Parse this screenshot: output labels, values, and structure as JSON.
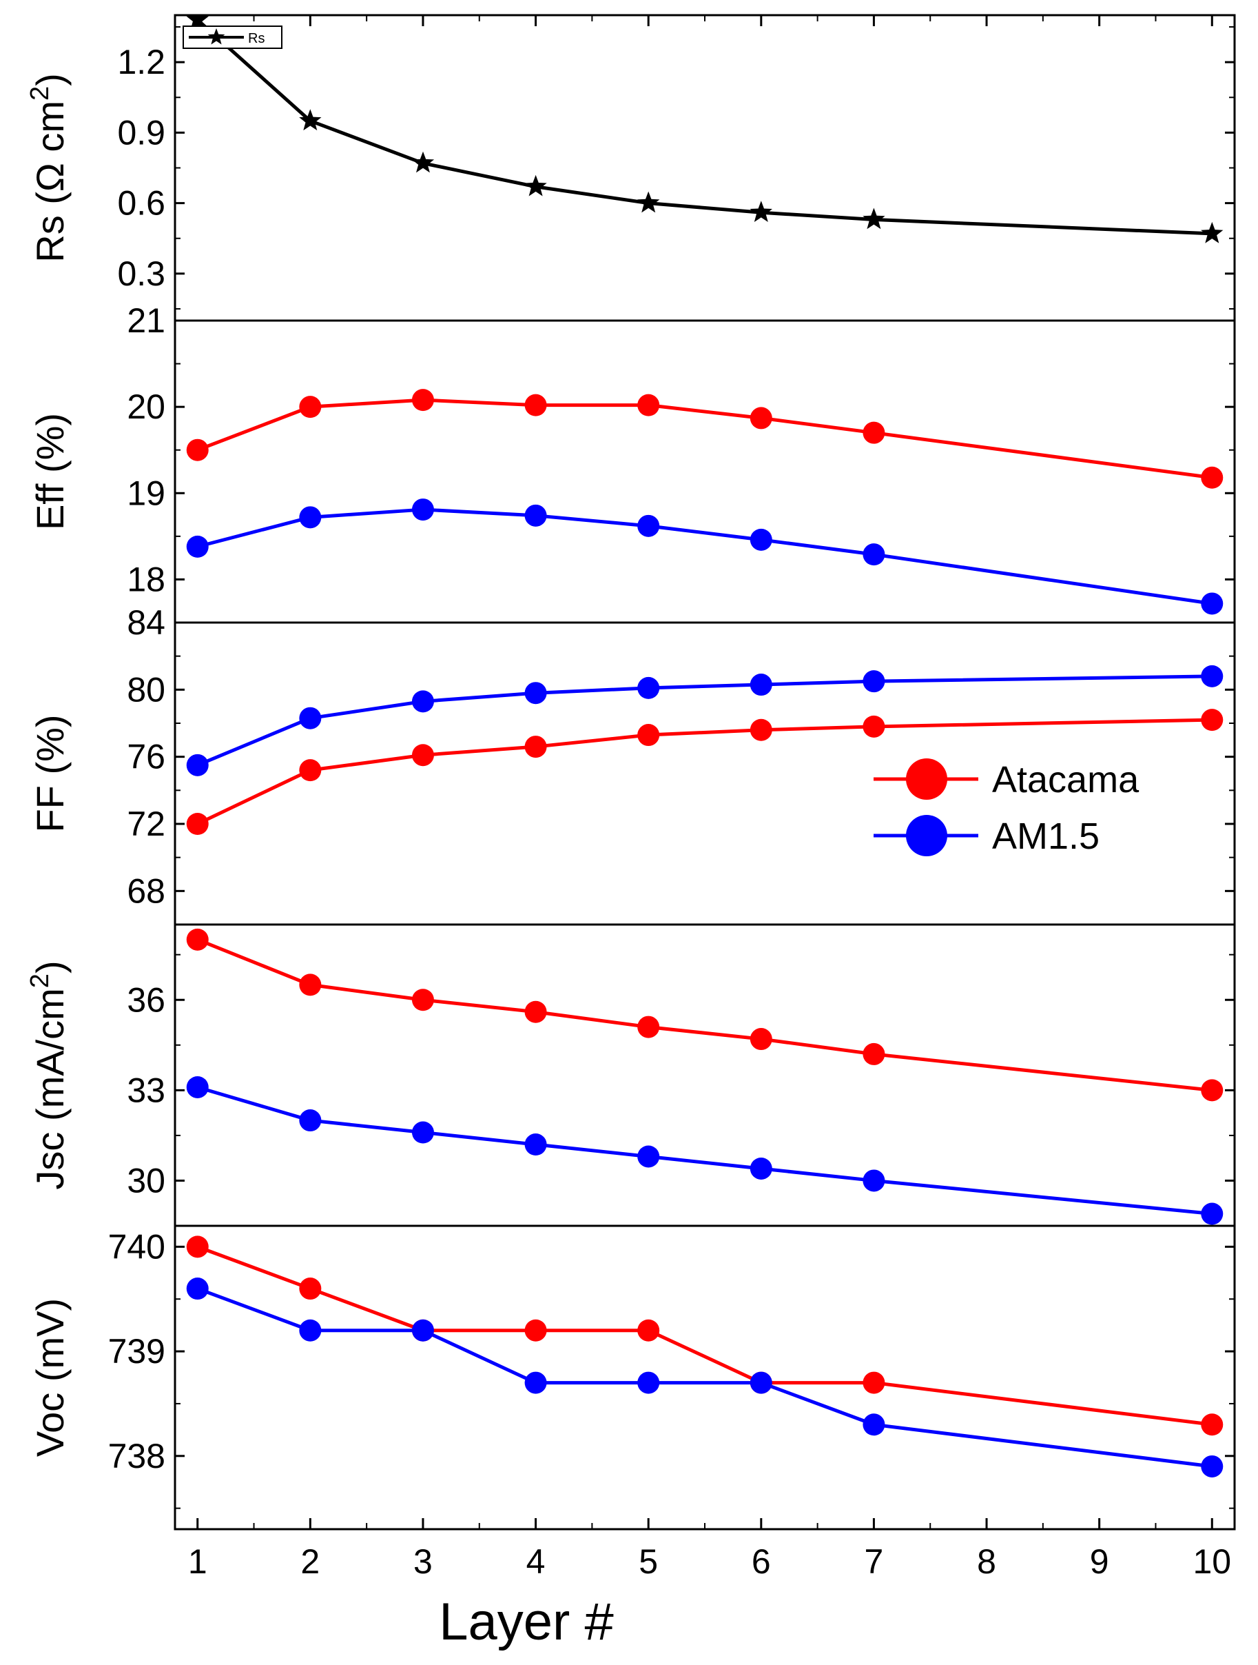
{
  "chart_data": {
    "type": "line",
    "xlabel": "Layer #",
    "x_ticks": [
      1,
      2,
      3,
      4,
      5,
      6,
      7,
      8,
      9,
      10
    ],
    "xlim": [
      0.8,
      10.2
    ],
    "colors": {
      "rs": "#000000",
      "atacama": "#ff0000",
      "am15": "#0000ff"
    },
    "legend": {
      "items": [
        "Atacama",
        "AM1.5"
      ],
      "placement": "right, inside FF panel"
    },
    "panels": [
      {
        "id": "rs",
        "ylabel_main": "Rs (Ω cm",
        "ylabel_sup": "2",
        "ylabel_end": ")",
        "ylim": [
          0.1,
          1.4
        ],
        "y_ticks": [
          0.3,
          0.6,
          0.9,
          1.2
        ],
        "y_tick_labels": [
          "0.3",
          "0.6",
          "0.9",
          "1.2"
        ],
        "small_legend": "Rs",
        "series": [
          {
            "name": "Rs",
            "color": "#000000",
            "marker": "star",
            "x": [
              1,
              2,
              3,
              4,
              5,
              6,
              7,
              10
            ],
            "y": [
              1.38,
              0.95,
              0.77,
              0.67,
              0.6,
              0.56,
              0.53,
              0.47
            ]
          }
        ]
      },
      {
        "id": "eff",
        "ylabel_main": "Eff (%)",
        "ylim": [
          17.5,
          21
        ],
        "y_ticks": [
          18,
          19,
          20,
          21
        ],
        "y_tick_labels": [
          "18",
          "19",
          "20",
          "21"
        ],
        "series": [
          {
            "name": "Atacama",
            "color": "#ff0000",
            "marker": "circle",
            "x": [
              1,
              2,
              3,
              4,
              5,
              6,
              7,
              10
            ],
            "y": [
              19.5,
              20.0,
              20.08,
              20.02,
              20.02,
              19.87,
              19.7,
              19.18
            ]
          },
          {
            "name": "AM1.5",
            "color": "#0000ff",
            "marker": "circle",
            "x": [
              1,
              2,
              3,
              4,
              5,
              6,
              7,
              10
            ],
            "y": [
              18.38,
              18.72,
              18.81,
              18.74,
              18.62,
              18.46,
              18.29,
              17.72
            ]
          }
        ]
      },
      {
        "id": "ff",
        "ylabel_main": "FF (%)",
        "ylim": [
          66,
          84
        ],
        "y_ticks": [
          68,
          72,
          76,
          80,
          84
        ],
        "y_tick_labels": [
          "68",
          "72",
          "76",
          "80",
          "84"
        ],
        "series": [
          {
            "name": "Atacama",
            "color": "#ff0000",
            "marker": "circle",
            "x": [
              1,
              2,
              3,
              4,
              5,
              6,
              7,
              10
            ],
            "y": [
              72.0,
              75.2,
              76.1,
              76.6,
              77.3,
              77.6,
              77.8,
              78.2
            ]
          },
          {
            "name": "AM1.5",
            "color": "#0000ff",
            "marker": "circle",
            "x": [
              1,
              2,
              3,
              4,
              5,
              6,
              7,
              10
            ],
            "y": [
              75.5,
              78.3,
              79.3,
              79.8,
              80.1,
              80.3,
              80.5,
              80.8
            ]
          }
        ]
      },
      {
        "id": "jsc",
        "ylabel_main": "Jsc (mA/cm",
        "ylabel_sup": "2",
        "ylabel_end": ")",
        "ylim": [
          28.5,
          38.5
        ],
        "y_ticks": [
          30,
          33,
          36
        ],
        "y_tick_labels": [
          "30",
          "33",
          "36"
        ],
        "series": [
          {
            "name": "Atacama",
            "color": "#ff0000",
            "marker": "circle",
            "x": [
              1,
              2,
              3,
              4,
              5,
              6,
              7,
              10
            ],
            "y": [
              38.0,
              36.5,
              36.0,
              35.6,
              35.1,
              34.7,
              34.2,
              33.0
            ]
          },
          {
            "name": "AM1.5",
            "color": "#0000ff",
            "marker": "circle",
            "x": [
              1,
              2,
              3,
              4,
              5,
              6,
              7,
              10
            ],
            "y": [
              33.1,
              32.0,
              31.6,
              31.2,
              30.8,
              30.4,
              30.0,
              28.9
            ]
          }
        ]
      },
      {
        "id": "voc",
        "ylabel_main": "Voc (mV)",
        "ylim": [
          737.3,
          740.2
        ],
        "y_ticks": [
          738,
          739,
          740
        ],
        "y_tick_labels": [
          "738",
          "739",
          "740"
        ],
        "series": [
          {
            "name": "Atacama",
            "color": "#ff0000",
            "marker": "circle",
            "x": [
              1,
              2,
              3,
              4,
              5,
              6,
              7,
              10
            ],
            "y": [
              740.0,
              739.6,
              739.2,
              739.2,
              739.2,
              738.7,
              738.7,
              738.3
            ]
          },
          {
            "name": "AM1.5",
            "color": "#0000ff",
            "marker": "circle",
            "x": [
              1,
              2,
              3,
              4,
              5,
              6,
              7,
              10
            ],
            "y": [
              739.6,
              739.2,
              739.2,
              738.7,
              738.7,
              738.7,
              738.3,
              737.9
            ]
          }
        ]
      }
    ]
  }
}
